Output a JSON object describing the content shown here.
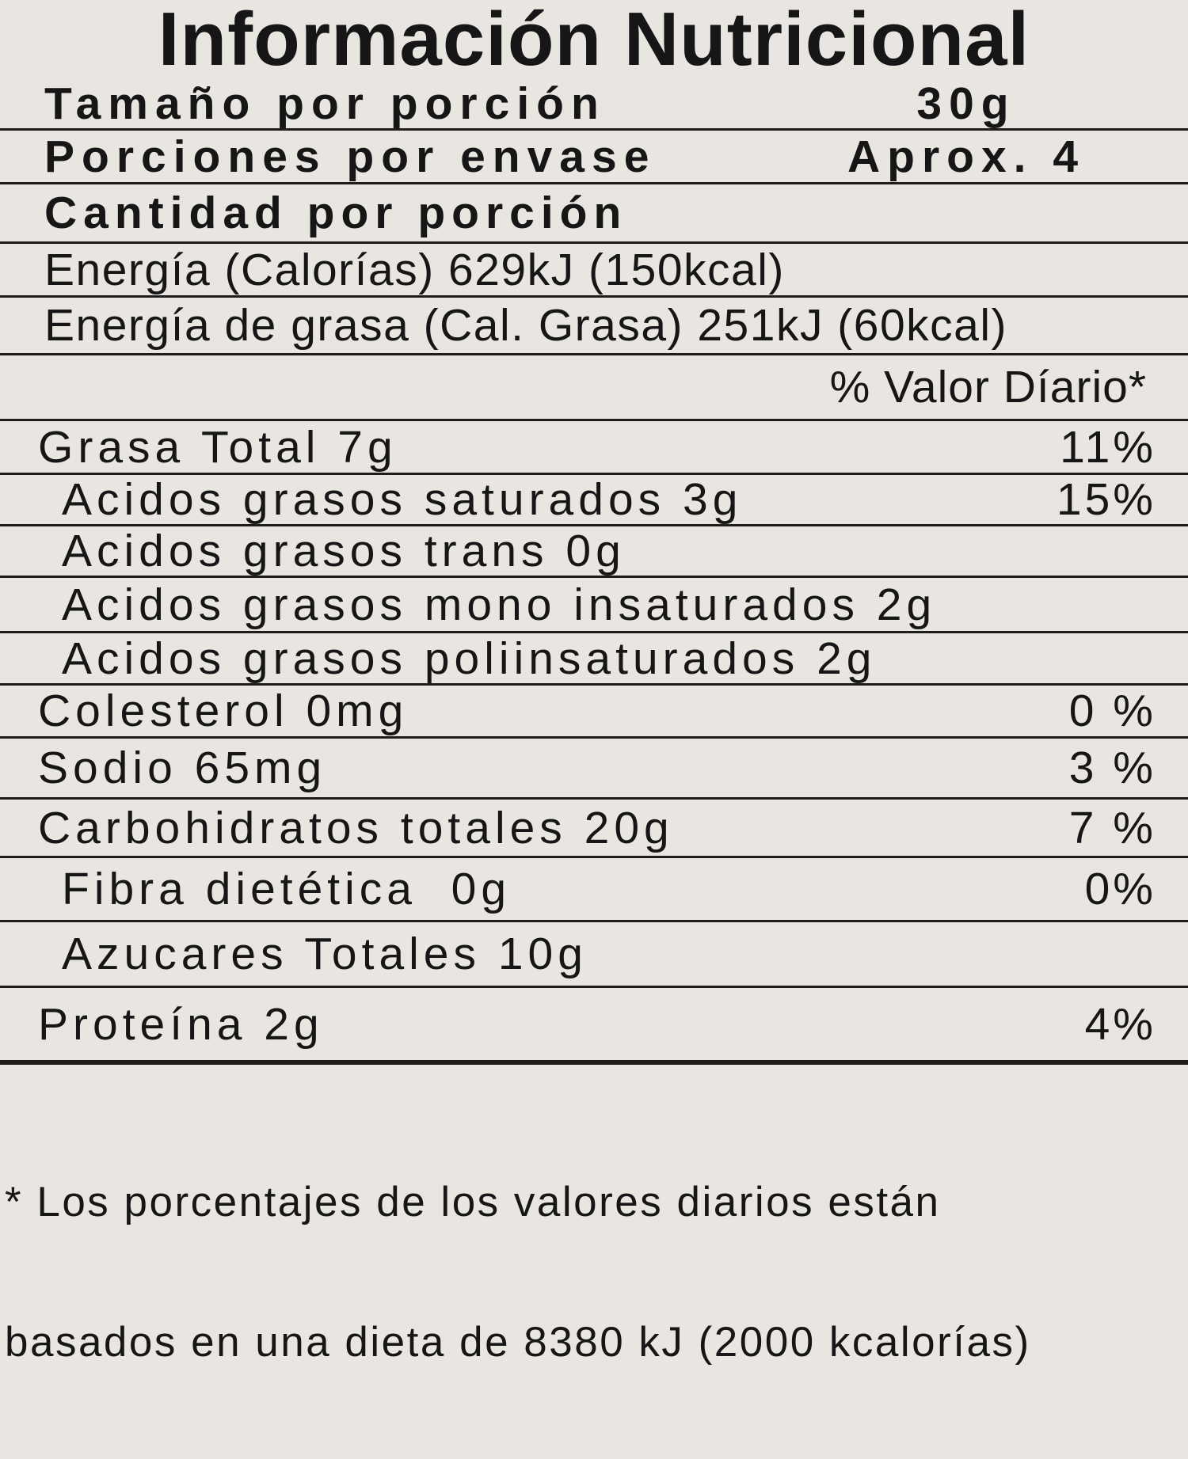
{
  "title": "Información Nutricional",
  "header_rows": {
    "serving_size": {
      "label": "Tamaño por porción",
      "value": "30g"
    },
    "servings_per_container": {
      "label": "Porciones por envase",
      "value": "Aprox. 4"
    },
    "amount_per_serving": {
      "label": "Cantidad por porción"
    },
    "energy": {
      "label": "Energía (Calorías) 629kJ (150kcal)"
    },
    "energy_from_fat": {
      "label": "Energía de grasa (Cal. Grasa) 251kJ (60kcal)"
    },
    "daily_value_header": "% Valor Díario*"
  },
  "nutrients": [
    {
      "name": "Grasa Total 7g",
      "daily_value": "11%"
    },
    {
      "name": "Acidos grasos saturados 3g",
      "daily_value": "15%"
    },
    {
      "name": "Acidos grasos trans 0g",
      "daily_value": ""
    },
    {
      "name": "Acidos grasos mono insaturados 2g",
      "daily_value": ""
    },
    {
      "name": "Acidos grasos poliinsaturados 2g",
      "daily_value": ""
    },
    {
      "name": "Colesterol 0mg",
      "daily_value": "0 %"
    },
    {
      "name": "Sodio 65mg",
      "daily_value": "3 %"
    },
    {
      "name": "Carbohidratos totales 20g",
      "daily_value": "7 %"
    },
    {
      "name": "Fibra dietética  0g",
      "daily_value": "0%"
    },
    {
      "name": "Azucares Totales 10g",
      "daily_value": ""
    },
    {
      "name": "Proteína 2g",
      "daily_value": "4%"
    }
  ],
  "footnote": {
    "line1": "* Los porcentajes de los valores diarios están",
    "line2": "basados en una dieta de 8380 kJ (2000 kcalorías)"
  },
  "colors": {
    "background": "#e9e6e2",
    "text": "#161616",
    "rule": "#1f1d1b"
  }
}
